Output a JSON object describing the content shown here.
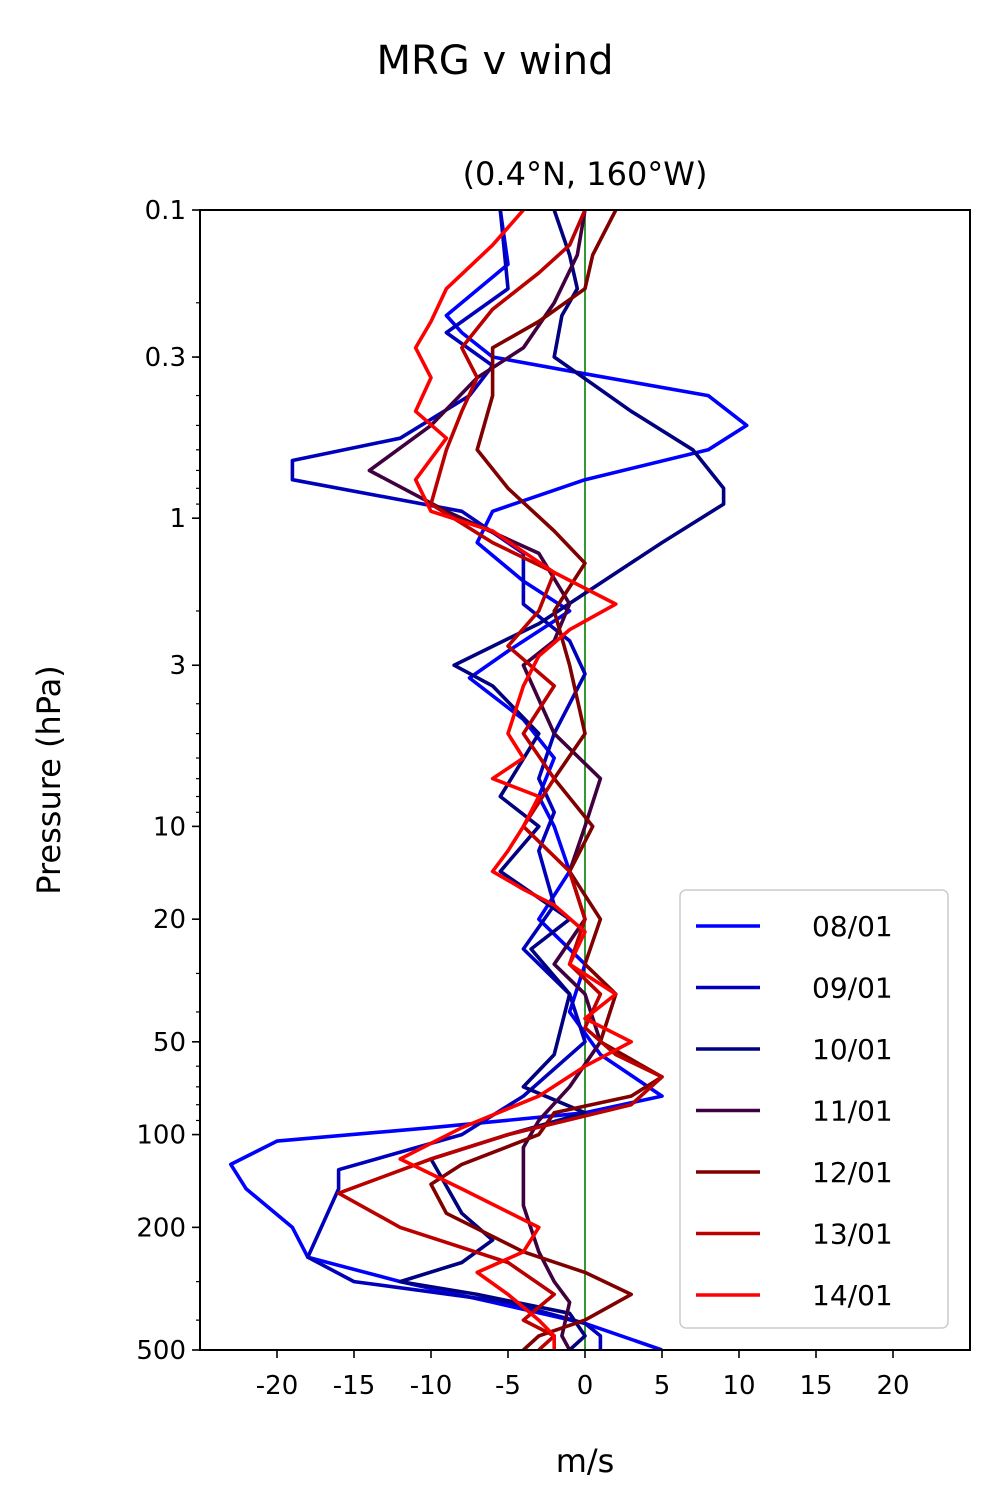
{
  "chart_data": {
    "type": "line",
    "suptitle": "MRG v wind",
    "title": "(0.4°N, 160°W)",
    "xlabel": "m/s",
    "ylabel": "Pressure (hPa)",
    "xlim": [
      -25,
      25
    ],
    "ylim": [
      500,
      0.1
    ],
    "yscale": "log",
    "x_ticks": [
      -20,
      -15,
      -10,
      -5,
      0,
      5,
      10,
      15,
      20
    ],
    "x_tick_labels": [
      "-20",
      "-15",
      "-10",
      "-5",
      "0",
      "5",
      "10",
      "15",
      "20"
    ],
    "y_ticks": [
      0.1,
      0.3,
      1,
      3,
      10,
      20,
      50,
      100,
      200,
      500
    ],
    "y_tick_labels": [
      "0.1",
      "0.3",
      "1",
      "3",
      "10",
      "20",
      "50",
      "100",
      "200",
      "500"
    ],
    "zero_line_color": "#008000",
    "legend_position": "lower-right",
    "series": [
      {
        "name": "08/01",
        "color": "#0000ff",
        "points": [
          [
            -5.5,
            0.1
          ],
          [
            -5,
            0.15
          ],
          [
            -9,
            0.22
          ],
          [
            -8,
            0.25
          ],
          [
            -6,
            0.3
          ],
          [
            0,
            0.34
          ],
          [
            8,
            0.4
          ],
          [
            10.5,
            0.5
          ],
          [
            8,
            0.6
          ],
          [
            0,
            0.75
          ],
          [
            -6,
            0.95
          ],
          [
            -7,
            1.2
          ],
          [
            -4,
            1.6
          ],
          [
            -1,
            2.0
          ],
          [
            -5,
            2.7
          ],
          [
            -7.5,
            3.3
          ],
          [
            -4,
            4.5
          ],
          [
            -2,
            6
          ],
          [
            -3,
            8
          ],
          [
            -2,
            10
          ],
          [
            -1,
            14
          ],
          [
            -3,
            20
          ],
          [
            0,
            28
          ],
          [
            -1,
            40
          ],
          [
            1,
            55
          ],
          [
            5,
            75
          ],
          [
            0,
            85
          ],
          [
            -10,
            95
          ],
          [
            -20,
            105
          ],
          [
            -23,
            125
          ],
          [
            -22,
            150
          ],
          [
            -19,
            200
          ],
          [
            -18,
            250
          ],
          [
            -12,
            300
          ],
          [
            -6,
            350
          ],
          [
            0,
            410
          ],
          [
            5,
            500
          ]
        ]
      },
      {
        "name": "09/01",
        "color": "#0000bb",
        "points": [
          [
            -5.5,
            0.1
          ],
          [
            -5,
            0.18
          ],
          [
            -9,
            0.25
          ],
          [
            -6,
            0.32
          ],
          [
            -7.5,
            0.4
          ],
          [
            -12,
            0.55
          ],
          [
            -19,
            0.65
          ],
          [
            -19,
            0.75
          ],
          [
            -8,
            0.95
          ],
          [
            -4,
            1.3
          ],
          [
            -4,
            1.9
          ],
          [
            -1,
            2.5
          ],
          [
            0,
            3.2
          ],
          [
            -2,
            5
          ],
          [
            -3,
            7
          ],
          [
            -2,
            9
          ],
          [
            -3,
            12
          ],
          [
            -2,
            18
          ],
          [
            -4,
            25
          ],
          [
            -1,
            35
          ],
          [
            0,
            50
          ],
          [
            -4,
            75
          ],
          [
            -8,
            100
          ],
          [
            -16,
            130
          ],
          [
            -16,
            150
          ],
          [
            -18,
            250
          ],
          [
            -15,
            300
          ],
          [
            -5,
            350
          ],
          [
            0,
            410
          ],
          [
            1,
            450
          ],
          [
            1,
            500
          ]
        ]
      },
      {
        "name": "10/01",
        "color": "#000080",
        "points": [
          [
            -2,
            0.1
          ],
          [
            -1,
            0.14
          ],
          [
            -0.5,
            0.18
          ],
          [
            -1.5,
            0.22
          ],
          [
            -2,
            0.3
          ],
          [
            3,
            0.45
          ],
          [
            7,
            0.6
          ],
          [
            9,
            0.8
          ],
          [
            9,
            0.9
          ],
          [
            5,
            1.2
          ],
          [
            -3,
            2.2
          ],
          [
            -8.5,
            3
          ],
          [
            -6,
            3.5
          ],
          [
            -3,
            5
          ],
          [
            -5.5,
            8
          ],
          [
            -3,
            10
          ],
          [
            -5.5,
            14
          ],
          [
            -1,
            20
          ],
          [
            -3.5,
            25
          ],
          [
            -1,
            35
          ],
          [
            -2,
            55
          ],
          [
            -4,
            70
          ],
          [
            0,
            85
          ],
          [
            -5,
            100
          ],
          [
            -10,
            120
          ],
          [
            -8,
            180
          ],
          [
            -6,
            220
          ],
          [
            -8,
            260
          ],
          [
            -12,
            300
          ],
          [
            -7,
            330
          ],
          [
            -1,
            380
          ],
          [
            0,
            450
          ],
          [
            -1,
            500
          ]
        ]
      },
      {
        "name": "11/01",
        "color": "#400040",
        "points": [
          [
            0,
            0.1
          ],
          [
            -0.5,
            0.14
          ],
          [
            -2,
            0.2
          ],
          [
            -4,
            0.28
          ],
          [
            -7,
            0.35
          ],
          [
            -10,
            0.5
          ],
          [
            -14,
            0.7
          ],
          [
            -9,
            0.95
          ],
          [
            -3,
            1.3
          ],
          [
            -1,
            1.9
          ],
          [
            -2,
            2.5
          ],
          [
            -4,
            3
          ],
          [
            -2,
            5
          ],
          [
            1,
            7
          ],
          [
            0,
            10
          ],
          [
            -1,
            14
          ],
          [
            0,
            20
          ],
          [
            -2,
            28
          ],
          [
            0,
            35
          ],
          [
            1,
            50
          ],
          [
            -1,
            70
          ],
          [
            -3,
            90
          ],
          [
            -4,
            110
          ],
          [
            -4,
            170
          ],
          [
            -3,
            240
          ],
          [
            -2,
            300
          ],
          [
            -1,
            350
          ],
          [
            -1.5,
            450
          ],
          [
            -1,
            500
          ]
        ]
      },
      {
        "name": "12/01",
        "color": "#800000",
        "points": [
          [
            2,
            0.1
          ],
          [
            0.5,
            0.14
          ],
          [
            0,
            0.18
          ],
          [
            -3,
            0.23
          ],
          [
            -6,
            0.28
          ],
          [
            -6,
            0.4
          ],
          [
            -7,
            0.6
          ],
          [
            -5,
            0.8
          ],
          [
            -2,
            1.1
          ],
          [
            0,
            1.4
          ],
          [
            -2,
            2
          ],
          [
            -1,
            3
          ],
          [
            0,
            5
          ],
          [
            -2,
            7
          ],
          [
            0.5,
            10
          ],
          [
            -1,
            14
          ],
          [
            1,
            20
          ],
          [
            0,
            28
          ],
          [
            2,
            35
          ],
          [
            1,
            50
          ],
          [
            5,
            65
          ],
          [
            3,
            75
          ],
          [
            -2,
            85
          ],
          [
            -3,
            100
          ],
          [
            -8,
            125
          ],
          [
            -10,
            145
          ],
          [
            -9,
            180
          ],
          [
            -4,
            240
          ],
          [
            0,
            280
          ],
          [
            3,
            330
          ],
          [
            0,
            400
          ],
          [
            -3,
            450
          ],
          [
            -4,
            500
          ]
        ]
      },
      {
        "name": "13/01",
        "color": "#bb0000",
        "points": [
          [
            0,
            0.1
          ],
          [
            -1,
            0.13
          ],
          [
            -3,
            0.16
          ],
          [
            -6,
            0.21
          ],
          [
            -8,
            0.28
          ],
          [
            -7,
            0.35
          ],
          [
            -8,
            0.45
          ],
          [
            -9,
            0.6
          ],
          [
            -10,
            0.9
          ],
          [
            -6,
            1.2
          ],
          [
            -2,
            1.5
          ],
          [
            -3,
            2
          ],
          [
            -5,
            2.6
          ],
          [
            -2,
            3.5
          ],
          [
            -4,
            5
          ],
          [
            -2,
            7
          ],
          [
            -4,
            10
          ],
          [
            -1,
            14
          ],
          [
            0,
            20
          ],
          [
            -1,
            28
          ],
          [
            1,
            35
          ],
          [
            0,
            45
          ],
          [
            2,
            55
          ],
          [
            5,
            65
          ],
          [
            3,
            80
          ],
          [
            -5,
            100
          ],
          [
            -10,
            120
          ],
          [
            -16,
            155
          ],
          [
            -12,
            200
          ],
          [
            -5,
            260
          ],
          [
            -2,
            330
          ],
          [
            -4,
            400
          ],
          [
            -2,
            450
          ],
          [
            -3,
            500
          ]
        ]
      },
      {
        "name": "14/01",
        "color": "#ff0000",
        "points": [
          [
            -4,
            0.1
          ],
          [
            -6,
            0.13
          ],
          [
            -9,
            0.18
          ],
          [
            -10,
            0.23
          ],
          [
            -11,
            0.28
          ],
          [
            -10,
            0.35
          ],
          [
            -11,
            0.45
          ],
          [
            -9,
            0.55
          ],
          [
            -11,
            0.75
          ],
          [
            -10,
            0.95
          ],
          [
            -6,
            1.1
          ],
          [
            -2,
            1.5
          ],
          [
            2,
            1.9
          ],
          [
            -1,
            2.3
          ],
          [
            -3,
            2.8
          ],
          [
            -4,
            3.5
          ],
          [
            -5,
            5
          ],
          [
            -4,
            6
          ],
          [
            -6,
            7
          ],
          [
            -3,
            8
          ],
          [
            -4,
            10
          ],
          [
            -5,
            12
          ],
          [
            -6,
            14
          ],
          [
            -4,
            16
          ],
          [
            -2,
            18
          ],
          [
            0,
            22
          ],
          [
            -1,
            28
          ],
          [
            2,
            35
          ],
          [
            0,
            42
          ],
          [
            3,
            50
          ],
          [
            0,
            60
          ],
          [
            -3,
            75
          ],
          [
            -8,
            95
          ],
          [
            -12,
            120
          ],
          [
            -8,
            150
          ],
          [
            -3,
            200
          ],
          [
            -4,
            240
          ],
          [
            -7,
            280
          ],
          [
            -5,
            330
          ],
          [
            -3,
            400
          ],
          [
            -2,
            450
          ],
          [
            -2,
            500
          ]
        ]
      }
    ]
  }
}
